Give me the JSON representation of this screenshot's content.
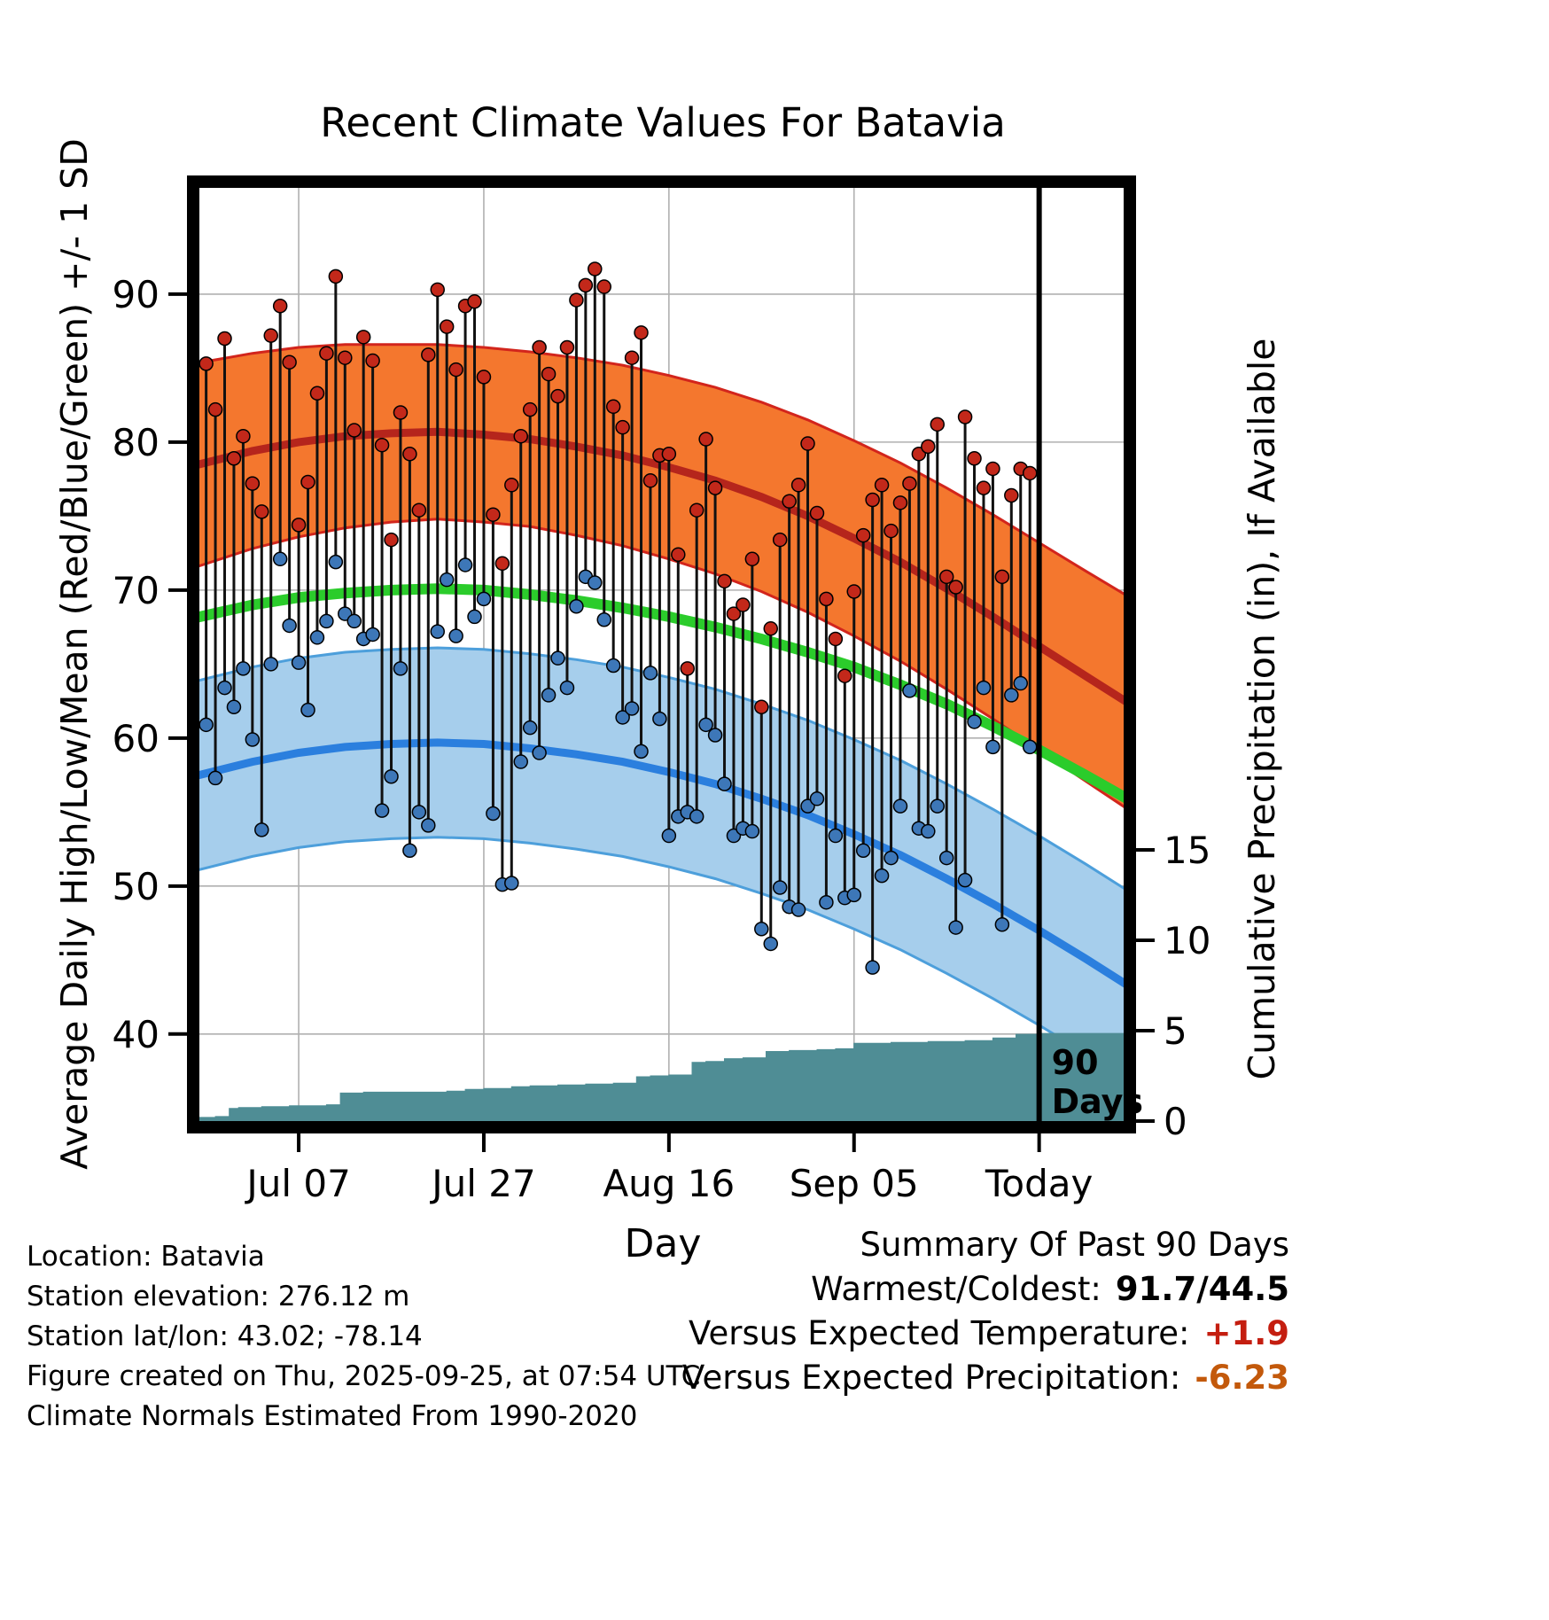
{
  "colors": {
    "high_band_fill": "#F4772E",
    "high_band_edge": "#D2251C",
    "high_mean_line": "#B5251C",
    "low_band_fill": "#A6CEEC",
    "low_band_edge": "#4D9FDB",
    "low_mean_line": "#2B7FDE",
    "mean_temp_line": "#2BCC2B",
    "high_dot": "#C3281A",
    "low_dot": "#3D77B8",
    "stem": "#111111",
    "precip_fill": "#4F8D95",
    "grid": "#B0B0B0",
    "today_line": "#000000",
    "summary_temp_value": "#C41E10",
    "summary_precip_value": "#C3590B"
  },
  "chart_data": {
    "type": "line",
    "subtype": "climate-normals-bands-with-daily-high-low-stems-and-cumulative-precip",
    "title": "Recent Climate Values For Batavia",
    "xlabel": "Day",
    "ylabel_left": "Average Daily High/Low/Mean (Red/Blue/Green) +/- 1 SD",
    "ylabel_right": "Cumulative Precipitation (in), If Available",
    "x_range": [
      -1.4,
      99.8
    ],
    "temp_range": [
      33.7,
      97.6
    ],
    "precip_axis_max": 15,
    "grid": true,
    "x_ticks": [
      {
        "pos": 10,
        "label": "Jul 07"
      },
      {
        "pos": 30,
        "label": "Jul 27"
      },
      {
        "pos": 50,
        "label": "Aug 16"
      },
      {
        "pos": 70,
        "label": "Sep 05"
      },
      {
        "pos": 90,
        "label": "Today"
      }
    ],
    "temp_ticks": [
      40,
      50,
      60,
      70,
      80,
      90
    ],
    "precip_ticks": [
      0,
      5,
      10,
      15
    ],
    "today_day": 90,
    "annotation": {
      "lines": [
        "90",
        "Days"
      ]
    },
    "band_days": [
      -1.4,
      5,
      10,
      15,
      20,
      25,
      30,
      35,
      40,
      45,
      50,
      55,
      60,
      65,
      70,
      75,
      80,
      85,
      90,
      95,
      99.8
    ],
    "high_band": {
      "lo": [
        71.5,
        72.8,
        73.6,
        74.2,
        74.6,
        74.8,
        74.6,
        74.3,
        73.7,
        73.0,
        72.1,
        71.1,
        69.9,
        68.5,
        66.9,
        65.2,
        63.3,
        61.3,
        59.2,
        57.1,
        55.1
      ],
      "hi": [
        85.3,
        86.0,
        86.4,
        86.6,
        86.6,
        86.6,
        86.4,
        86.1,
        85.7,
        85.2,
        84.5,
        83.7,
        82.7,
        81.5,
        80.1,
        78.6,
        76.9,
        75.1,
        73.2,
        71.3,
        69.5
      ],
      "mean": [
        78.4,
        79.4,
        80.0,
        80.4,
        80.6,
        80.7,
        80.5,
        80.2,
        79.7,
        79.1,
        78.3,
        77.4,
        76.3,
        75.0,
        73.5,
        71.9,
        70.1,
        68.2,
        66.2,
        64.2,
        62.3
      ]
    },
    "low_band": {
      "lo": [
        51.0,
        52.0,
        52.6,
        53.0,
        53.2,
        53.3,
        53.2,
        52.9,
        52.5,
        52.0,
        51.3,
        50.5,
        49.5,
        48.4,
        47.1,
        45.7,
        44.1,
        42.4,
        40.6,
        38.7,
        36.8
      ],
      "hi": [
        63.8,
        64.8,
        65.4,
        65.8,
        66.0,
        66.1,
        66.0,
        65.7,
        65.3,
        64.8,
        64.1,
        63.3,
        62.3,
        61.2,
        59.9,
        58.5,
        56.9,
        55.2,
        53.4,
        51.5,
        49.6
      ],
      "mean": [
        57.4,
        58.4,
        59.0,
        59.4,
        59.6,
        59.7,
        59.6,
        59.3,
        58.9,
        58.4,
        57.7,
        56.9,
        55.9,
        54.8,
        53.5,
        52.1,
        50.5,
        48.8,
        47.0,
        45.1,
        43.2
      ]
    },
    "mean_temp": [
      68.1,
      69.0,
      69.5,
      69.8,
      70.0,
      70.1,
      70.0,
      69.7,
      69.3,
      68.8,
      68.2,
      67.5,
      66.7,
      65.8,
      64.8,
      63.6,
      62.3,
      60.8,
      59.2,
      57.5,
      55.8
    ],
    "daily_highs": [
      85.3,
      82.2,
      87.0,
      78.9,
      80.4,
      77.2,
      75.3,
      87.2,
      89.2,
      85.4,
      74.4,
      77.3,
      83.3,
      86.0,
      91.2,
      85.7,
      80.8,
      87.1,
      85.5,
      79.8,
      73.4,
      82.0,
      79.2,
      75.4,
      85.9,
      90.3,
      87.8,
      84.9,
      89.2,
      89.5,
      84.4,
      75.1,
      71.8,
      77.1,
      80.4,
      82.2,
      86.4,
      84.6,
      83.1,
      86.4,
      89.6,
      90.6,
      91.7,
      90.5,
      82.4,
      81.0,
      85.7,
      87.4,
      77.4,
      79.1,
      79.2,
      72.4,
      64.7,
      75.4,
      80.2,
      76.9,
      70.6,
      68.4,
      69.0,
      72.1,
      62.1,
      67.4,
      73.4,
      76.0,
      77.1,
      79.9,
      75.2,
      69.4,
      66.7,
      64.2,
      69.9,
      73.7,
      76.1,
      77.1,
      74.0,
      75.9,
      77.2,
      79.2,
      79.7,
      81.2,
      70.9,
      70.2,
      81.7,
      78.9,
      76.9,
      78.2,
      70.9,
      76.4,
      78.2,
      77.9
    ],
    "daily_lows": [
      60.9,
      57.3,
      63.4,
      62.1,
      64.7,
      59.9,
      53.8,
      65.0,
      72.1,
      67.6,
      65.1,
      61.9,
      66.8,
      67.9,
      71.9,
      68.4,
      67.9,
      66.7,
      67.0,
      55.1,
      57.4,
      64.7,
      52.4,
      55.0,
      54.1,
      67.2,
      70.7,
      66.9,
      71.7,
      68.2,
      69.4,
      54.9,
      50.1,
      50.2,
      58.4,
      60.7,
      59.0,
      62.9,
      65.4,
      63.4,
      68.9,
      70.9,
      70.5,
      68.0,
      64.9,
      61.4,
      62.0,
      59.1,
      64.4,
      61.3,
      53.4,
      54.7,
      55.0,
      54.7,
      60.9,
      60.2,
      56.9,
      53.4,
      53.9,
      53.7,
      47.1,
      46.1,
      49.9,
      48.6,
      48.4,
      55.4,
      55.9,
      48.9,
      53.4,
      49.2,
      49.4,
      52.4,
      44.5,
      50.7,
      51.9,
      55.4,
      63.2,
      53.9,
      53.7,
      55.4,
      51.9,
      47.2,
      50.4,
      61.1,
      63.4,
      59.4,
      47.4,
      62.9,
      63.7,
      59.4
    ],
    "precip": {
      "d": [
        -1.4,
        1,
        2.5,
        3.5,
        6,
        9,
        13,
        14.5,
        17,
        26,
        28,
        30,
        33,
        35,
        38,
        41,
        44,
        46.5,
        48,
        50,
        52.5,
        54,
        56,
        58,
        60.5,
        63,
        66,
        68,
        70,
        74,
        78,
        82,
        85,
        87.5,
        90,
        99.8
      ],
      "v": [
        0.2,
        0.25,
        0.7,
        0.75,
        0.8,
        0.85,
        0.9,
        1.55,
        1.6,
        1.65,
        1.75,
        1.8,
        1.9,
        1.95,
        2.0,
        2.05,
        2.1,
        2.45,
        2.5,
        2.55,
        3.25,
        3.3,
        3.45,
        3.5,
        3.85,
        3.9,
        3.95,
        4.0,
        4.3,
        4.35,
        4.4,
        4.45,
        4.6,
        4.8,
        4.85,
        4.85
      ]
    }
  },
  "footer": {
    "lines": [
      "Location: Batavia",
      "Station elevation: 276.12 m",
      "Station lat/lon: 43.02; -78.14",
      "Figure created on Thu, 2025-09-25, at 07:54 UTC",
      "Climate Normals Estimated From 1990-2020"
    ]
  },
  "summary": {
    "title": "Summary Of Past 90 Days",
    "rows": [
      {
        "label": "Warmest/Coldest:",
        "value": "91.7/44.5",
        "style": "plain"
      },
      {
        "label": "Versus Expected Temperature:",
        "value": "+1.9",
        "style": "red"
      },
      {
        "label": "Versus Expected Precipitation:",
        "value": "-6.23",
        "style": "rust"
      }
    ]
  }
}
